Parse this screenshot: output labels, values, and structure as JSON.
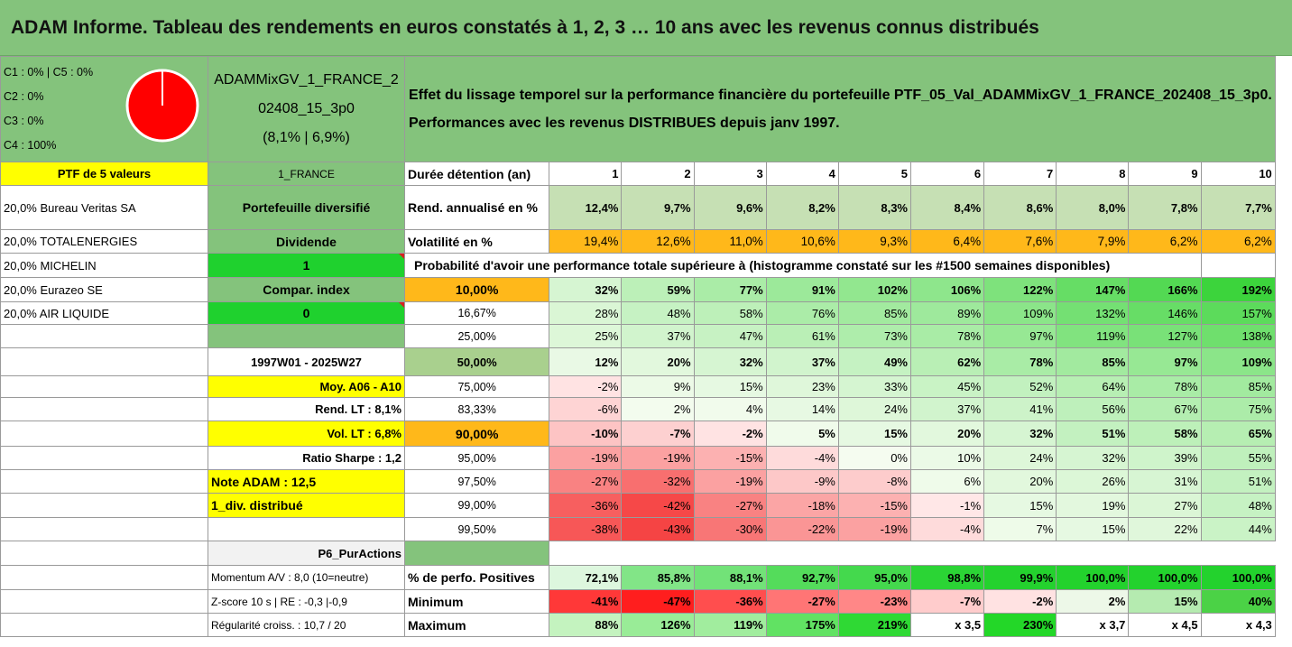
{
  "title": "ADAM Informe. Tableau des rendements en euros constatés à 1, 2, 3 … 10 ans avec les revenus connus distribués",
  "classes": [
    "C1 : 0% | C5 : 0%",
    "C2 : 0%",
    "C3 : 0%",
    "C4 : 100%"
  ],
  "pie": {
    "c4_share": 100,
    "color": "#ff0000"
  },
  "portfolio_name": [
    "ADAMMixGV_1_FRANCE_2",
    "02408_15_3p0",
    "(8,1% | 6,9%)"
  ],
  "effect_text": [
    "Effet du lissage temporel sur la performance financière du portefeuille PTF_05_Val_ADAMMixGV_1_FRANCE_202408_15_3p0.",
    "Performances avec les revenus DISTRIBUES depuis janv 1997."
  ],
  "ptf_label": "PTF de 5 valeurs",
  "country": "1_FRANCE",
  "holdings": [
    "20,0% Bureau Veritas SA",
    "20,0% TOTALENERGIES",
    "20,0% MICHELIN",
    "20,0% Eurazeo SE",
    "20,0% AIR LIQUIDE"
  ],
  "side": {
    "diversified": "Portefeuille diversifié",
    "dividend_label": "Dividende",
    "dividend_value": "1",
    "compar_label": "Compar. index",
    "compar_value": "0",
    "period": "1997W01 - 2025W27",
    "moy": "Moy. A06 - A10",
    "rend_lt": "Rend. LT : 8,1%",
    "vol_lt": "Vol. LT : 6,8%",
    "sharpe": "Ratio Sharpe : 1,2",
    "note": "Note ADAM : 12,5",
    "div": "1_div. distribué",
    "p6": "P6_PurActions",
    "momentum": "Momentum A/V : 8,0 (10=neutre)",
    "zscore": "Z-score 10 s | RE : -0,3 |-0,9",
    "regularite": "Régularité croiss. : 10,7 / 20"
  },
  "duration_label": "Durée détention (an)",
  "years": [
    "1",
    "2",
    "3",
    "4",
    "5",
    "6",
    "7",
    "8",
    "9",
    "10"
  ],
  "rend_label": "Rend. annualisé en %",
  "rend": [
    "12,4%",
    "9,7%",
    "9,6%",
    "8,2%",
    "8,3%",
    "8,4%",
    "8,6%",
    "8,0%",
    "7,8%",
    "7,7%"
  ],
  "vol_label": "Volatilité en %",
  "vol": [
    "19,4%",
    "12,6%",
    "11,0%",
    "10,6%",
    "9,3%",
    "6,4%",
    "7,6%",
    "7,9%",
    "6,2%",
    "6,2%"
  ],
  "prob_label": "Probabilité d'avoir une performance totale supérieure à (histogramme constaté sur les #1500 semaines disponibles)",
  "prob_rows": [
    {
      "p": "10,00%",
      "v": [
        "32%",
        "59%",
        "77%",
        "91%",
        "102%",
        "106%",
        "122%",
        "147%",
        "166%",
        "192%"
      ]
    },
    {
      "p": "16,67%",
      "v": [
        "28%",
        "48%",
        "58%",
        "76%",
        "85%",
        "89%",
        "109%",
        "132%",
        "146%",
        "157%"
      ]
    },
    {
      "p": "25,00%",
      "v": [
        "25%",
        "37%",
        "47%",
        "61%",
        "73%",
        "78%",
        "97%",
        "119%",
        "127%",
        "138%"
      ]
    },
    {
      "p": "50,00%",
      "v": [
        "12%",
        "20%",
        "32%",
        "37%",
        "49%",
        "62%",
        "78%",
        "85%",
        "97%",
        "109%"
      ]
    },
    {
      "p": "75,00%",
      "v": [
        "-2%",
        "9%",
        "15%",
        "23%",
        "33%",
        "45%",
        "52%",
        "64%",
        "78%",
        "85%"
      ]
    },
    {
      "p": "83,33%",
      "v": [
        "-6%",
        "2%",
        "4%",
        "14%",
        "24%",
        "37%",
        "41%",
        "56%",
        "67%",
        "75%"
      ]
    },
    {
      "p": "90,00%",
      "v": [
        "-10%",
        "-7%",
        "-2%",
        "5%",
        "15%",
        "20%",
        "32%",
        "51%",
        "58%",
        "65%"
      ]
    },
    {
      "p": "95,00%",
      "v": [
        "-19%",
        "-19%",
        "-15%",
        "-4%",
        "0%",
        "10%",
        "24%",
        "32%",
        "39%",
        "55%"
      ]
    },
    {
      "p": "97,50%",
      "v": [
        "-27%",
        "-32%",
        "-19%",
        "-9%",
        "-8%",
        "6%",
        "20%",
        "26%",
        "31%",
        "51%"
      ]
    },
    {
      "p": "99,00%",
      "v": [
        "-36%",
        "-42%",
        "-27%",
        "-18%",
        "-15%",
        "-1%",
        "15%",
        "19%",
        "27%",
        "48%"
      ]
    },
    {
      "p": "99,50%",
      "v": [
        "-38%",
        "-43%",
        "-30%",
        "-22%",
        "-19%",
        "-4%",
        "7%",
        "15%",
        "22%",
        "44%"
      ]
    }
  ],
  "pos_label": "% de perfo. Positives",
  "pos": [
    "72,1%",
    "85,8%",
    "88,1%",
    "92,7%",
    "95,0%",
    "98,8%",
    "99,9%",
    "100,0%",
    "100,0%",
    "100,0%"
  ],
  "min_label": "Minimum",
  "min": [
    "-41%",
    "-47%",
    "-36%",
    "-27%",
    "-23%",
    "-7%",
    "-2%",
    "2%",
    "15%",
    "40%"
  ],
  "max_label": "Maximum",
  "max": [
    "88%",
    "126%",
    "119%",
    "175%",
    "219%",
    "x 3,5",
    "230%",
    "x 3,7",
    "x 4,5",
    "x 4,3"
  ]
}
